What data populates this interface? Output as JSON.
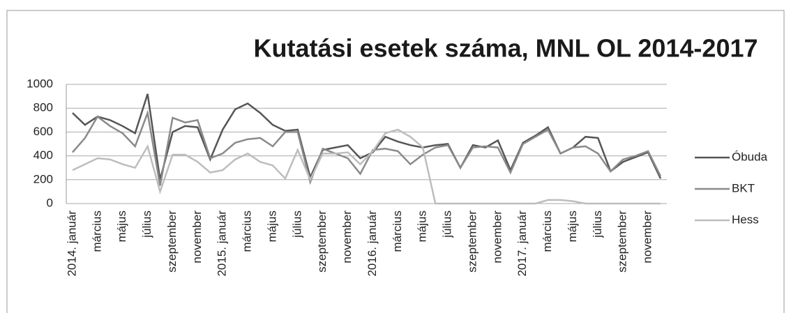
{
  "chart_data": {
    "type": "line",
    "title": "Kutatási esetek száma, MNL OL 2014-2017",
    "categories": [
      "2014. január",
      null,
      "március",
      null,
      "május",
      null,
      "július",
      null,
      "szeptember",
      null,
      "november",
      null,
      "2015. január",
      null,
      "március",
      null,
      "május",
      null,
      "július",
      null,
      "szeptember",
      null,
      "november",
      null,
      "2016. január",
      null,
      "március",
      null,
      "május",
      null,
      "július",
      null,
      "szeptember",
      null,
      "november",
      null,
      "2017. január",
      null,
      "március",
      null,
      "május",
      null,
      "július",
      null,
      "szeptember",
      null,
      "november",
      null
    ],
    "series": [
      {
        "name": "Óbuda",
        "color": "#555555",
        "values": [
          760,
          660,
          730,
          700,
          650,
          590,
          920,
          200,
          600,
          650,
          640,
          370,
          620,
          790,
          840,
          760,
          660,
          610,
          620,
          220,
          450,
          470,
          490,
          380,
          430,
          560,
          520,
          490,
          470,
          490,
          500,
          300,
          490,
          470,
          530,
          280,
          510,
          570,
          640,
          420,
          470,
          560,
          550,
          270,
          350,
          390,
          430,
          210
        ]
      },
      {
        "name": "BKT",
        "color": "#8a8a8a",
        "values": [
          430,
          550,
          730,
          650,
          590,
          480,
          760,
          150,
          720,
          680,
          700,
          380,
          420,
          510,
          540,
          550,
          480,
          600,
          600,
          180,
          460,
          420,
          380,
          250,
          450,
          460,
          440,
          330,
          410,
          470,
          490,
          300,
          470,
          480,
          470,
          260,
          500,
          560,
          620,
          420,
          470,
          480,
          420,
          270,
          370,
          400,
          440,
          230
        ]
      },
      {
        "name": "Hess",
        "color": "#bdbdbd",
        "values": [
          280,
          330,
          380,
          370,
          330,
          300,
          480,
          100,
          410,
          410,
          350,
          260,
          280,
          370,
          420,
          350,
          320,
          210,
          450,
          200,
          420,
          420,
          430,
          330,
          440,
          590,
          620,
          560,
          470,
          0,
          0,
          0,
          0,
          0,
          0,
          0,
          0,
          0,
          30,
          30,
          20,
          0,
          0,
          0,
          0,
          0,
          0,
          0
        ]
      }
    ],
    "ylim": [
      0,
      1000
    ],
    "yticks": [
      0,
      200,
      400,
      600,
      800,
      1000
    ],
    "grid": true,
    "legend": "right"
  }
}
